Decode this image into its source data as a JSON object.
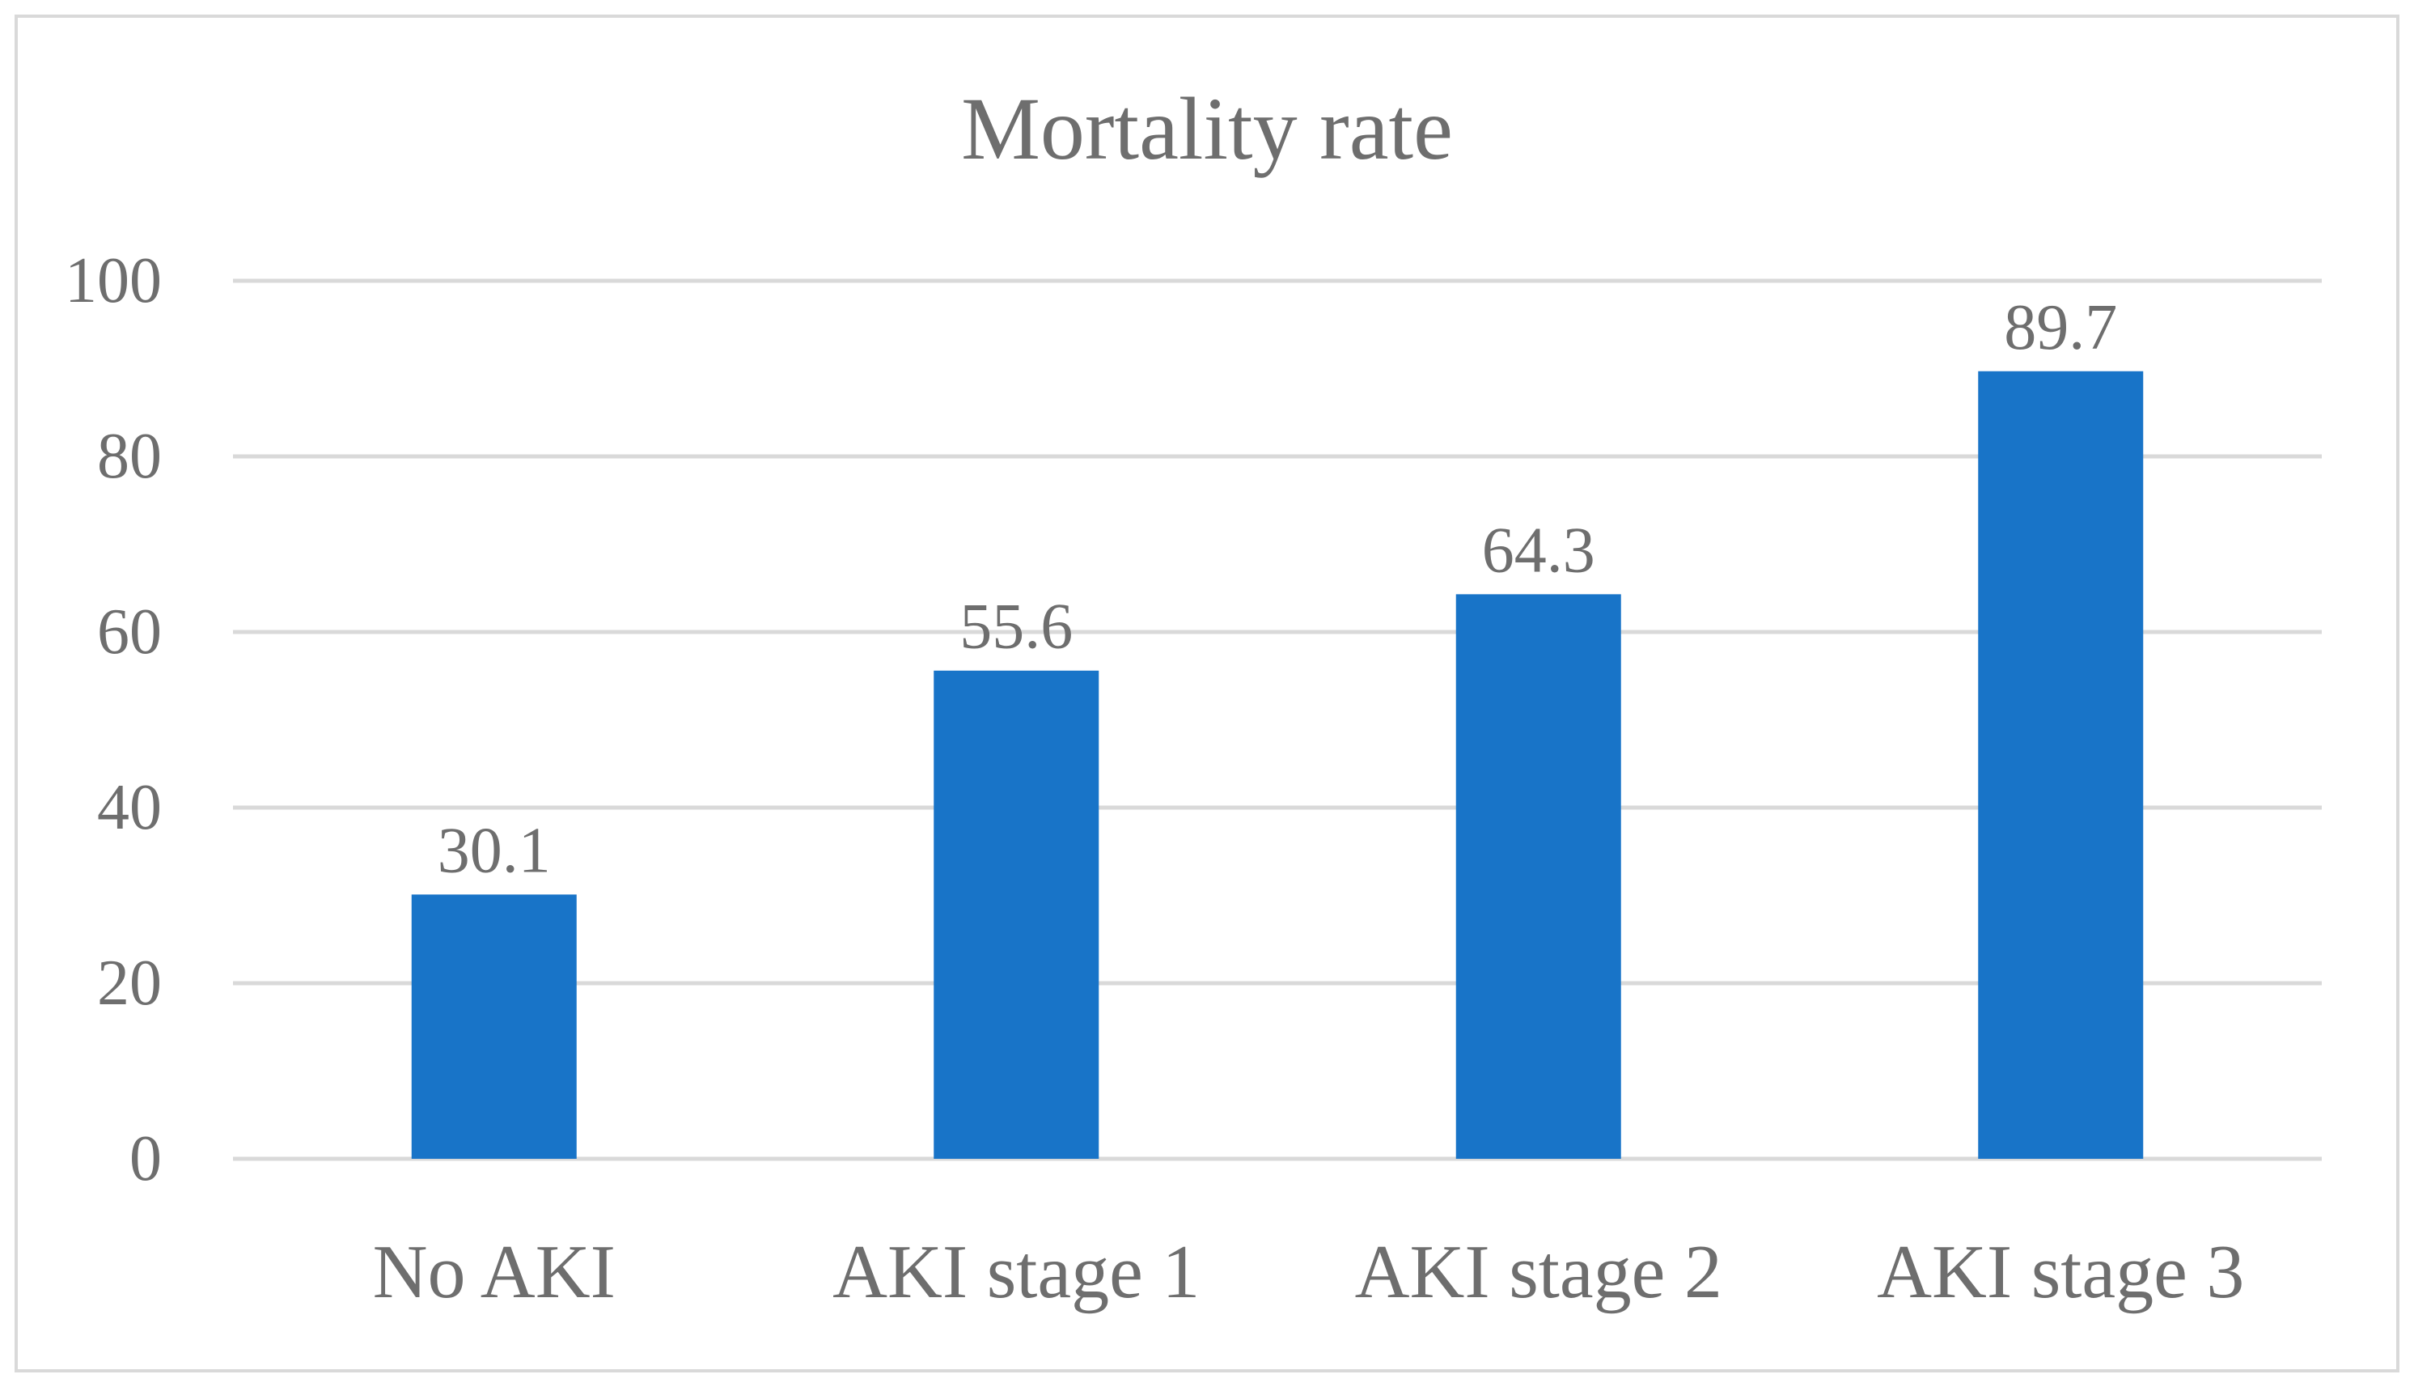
{
  "chart_data": {
    "type": "bar",
    "title": "Mortality rate",
    "xlabel": "",
    "ylabel": "",
    "categories": [
      "No AKI",
      "AKI stage 1",
      "AKI stage 2",
      "AKI stage 3"
    ],
    "values": [
      30.1,
      55.6,
      64.3,
      89.7
    ],
    "value_labels": [
      "30.1",
      "55.6",
      "64.3",
      "89.7"
    ],
    "ylim": [
      0,
      100
    ],
    "yticks": [
      "0",
      "20",
      "40",
      "60",
      "80",
      "100"
    ],
    "ytick_values": [
      0,
      20,
      40,
      60,
      80,
      100
    ],
    "grid": true,
    "legend": "none",
    "colors": {
      "bar": "#1874C8",
      "gridline": "#D9D9D9",
      "text": "#6E6E6E",
      "title": "#6E6E6E",
      "frame": "#D9D9D9"
    }
  }
}
